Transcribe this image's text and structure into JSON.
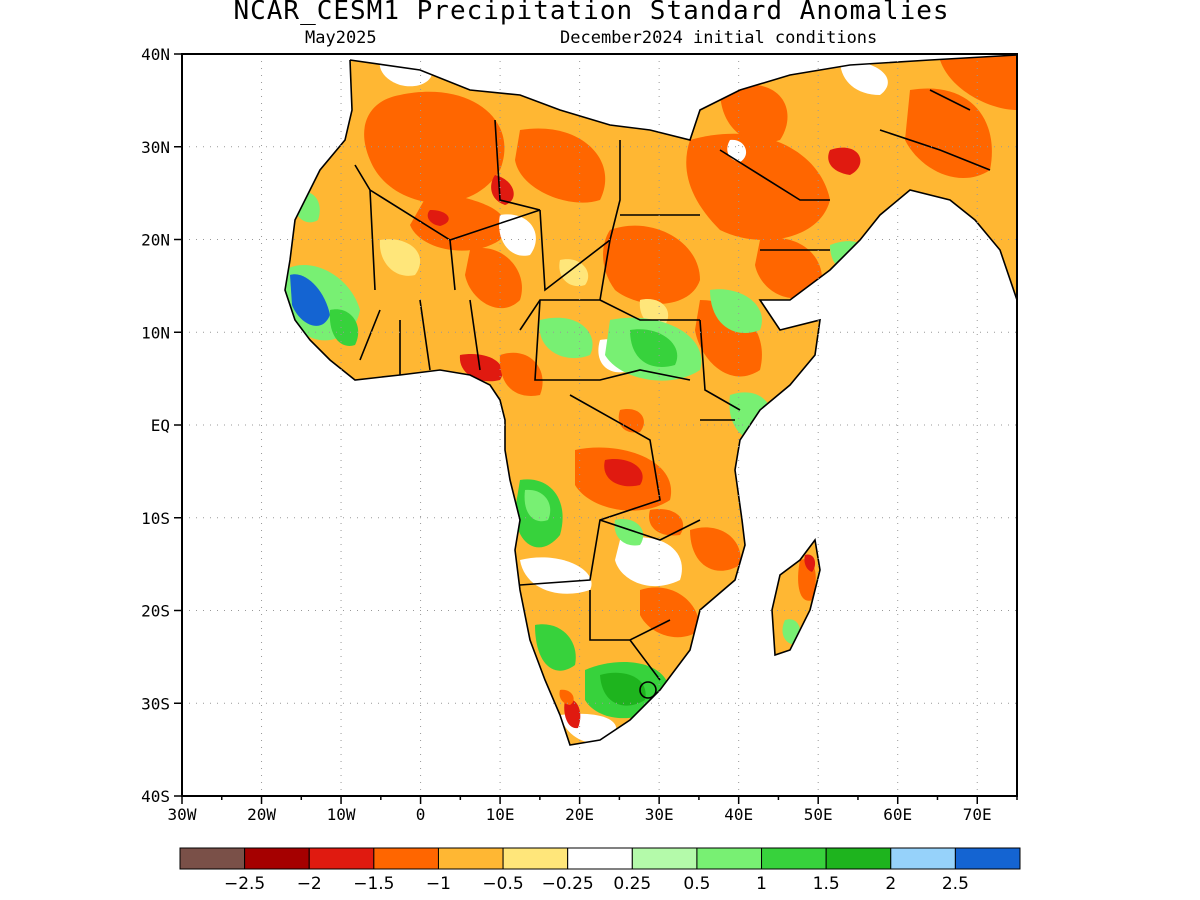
{
  "header": {
    "title": "NCAR_CESM1 Precipitation Standard Anomalies",
    "month": "May2025",
    "initial_conditions": "December2024 initial conditions"
  },
  "map": {
    "lon_range": [
      -30,
      75
    ],
    "lat_range": [
      -40,
      40
    ],
    "lat_ticks": [
      {
        "value": 40,
        "label": "40N"
      },
      {
        "value": 30,
        "label": "30N"
      },
      {
        "value": 20,
        "label": "20N"
      },
      {
        "value": 10,
        "label": "10N"
      },
      {
        "value": 0,
        "label": "EQ"
      },
      {
        "value": -10,
        "label": "10S"
      },
      {
        "value": -20,
        "label": "20S"
      },
      {
        "value": -30,
        "label": "30S"
      },
      {
        "value": -40,
        "label": "40S"
      }
    ],
    "lon_ticks": [
      {
        "value": -30,
        "label": "30W"
      },
      {
        "value": -20,
        "label": "20W"
      },
      {
        "value": -10,
        "label": "10W"
      },
      {
        "value": 0,
        "label": "0"
      },
      {
        "value": 10,
        "label": "10E"
      },
      {
        "value": 20,
        "label": "20E"
      },
      {
        "value": 30,
        "label": "30E"
      },
      {
        "value": 40,
        "label": "40E"
      },
      {
        "value": 50,
        "label": "50E"
      },
      {
        "value": 60,
        "label": "60E"
      },
      {
        "value": 70,
        "label": "70E"
      }
    ],
    "grid": true
  },
  "colorbar": {
    "labels": [
      "-2.5",
      "-2",
      "-1.5",
      "-1",
      "-0.5",
      "-0.25",
      "0.25",
      "0.5",
      "1",
      "1.5",
      "2",
      "2.5"
    ],
    "colors": [
      "#7a5048",
      "#a50000",
      "#e01a10",
      "#ff6600",
      "#ffb733",
      "#ffe67a",
      "#ffffff",
      "#b4faaa",
      "#78f073",
      "#37d23c",
      "#1eb41e",
      "#96d2fa",
      "#1464d2"
    ]
  },
  "palette": {
    "neg_strong": "#e01a10",
    "neg_mid": "#ff6600",
    "neg_light": "#ffb733",
    "neg_faint": "#ffe67a",
    "pos_faint": "#b4faaa",
    "pos_light": "#78f073",
    "pos_mid": "#37d23c",
    "pos_strong": "#1eb41e",
    "pos_blue": "#1464d2"
  }
}
